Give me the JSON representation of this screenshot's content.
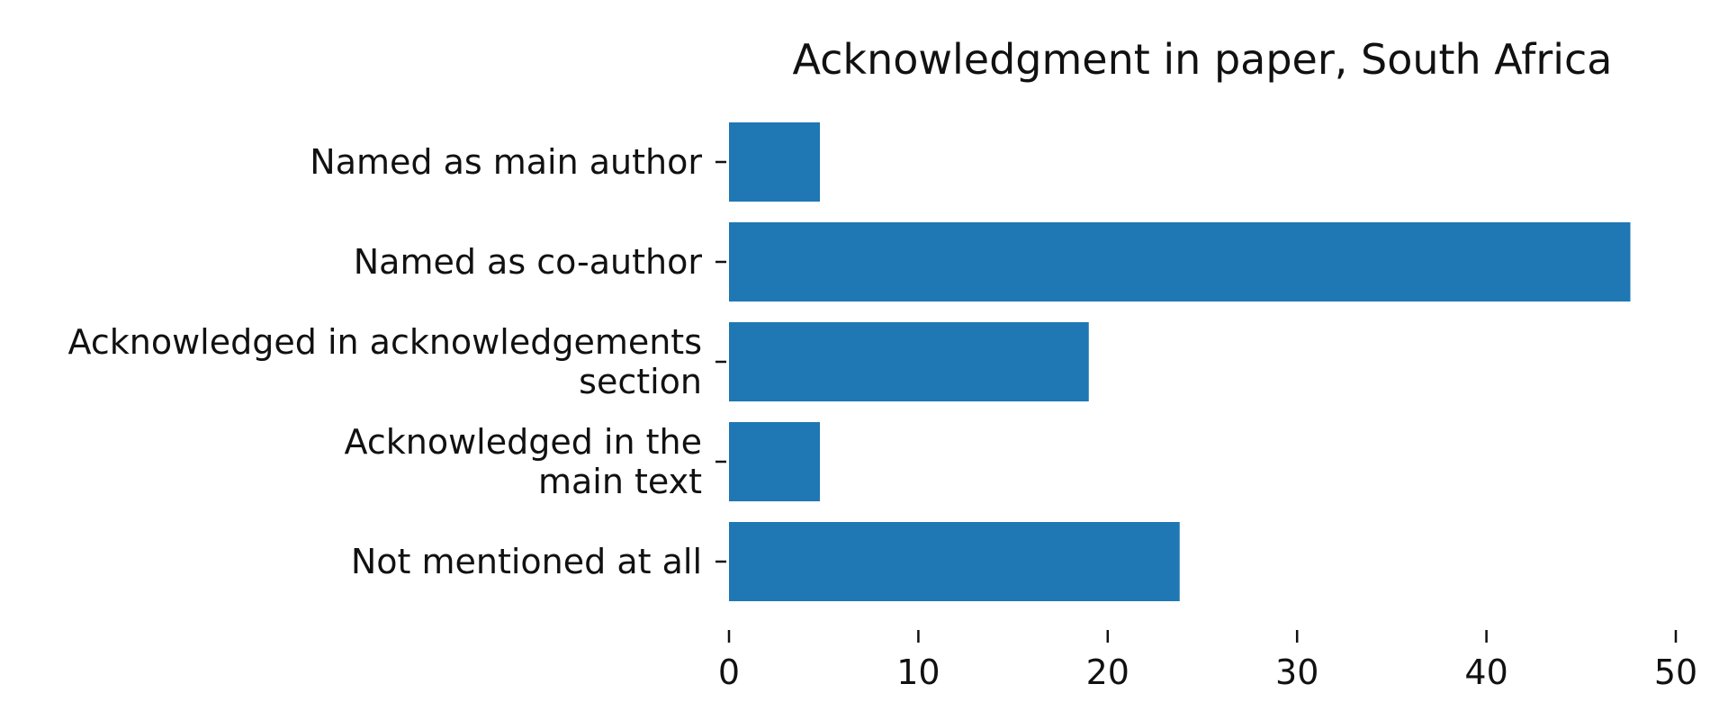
{
  "chart_data": {
    "type": "bar",
    "orientation": "horizontal",
    "title": "Acknowledgment in paper, South Africa",
    "xlabel": "",
    "ylabel": "",
    "categories": [
      "Named as main author",
      "Named as co-author",
      "Acknowledged in acknowledgements section",
      "Acknowledged in the main text",
      "Not mentioned at all"
    ],
    "category_lines": [
      [
        "Named as main author"
      ],
      [
        "Named as co-author"
      ],
      [
        "Acknowledged in acknowledgements",
        "section"
      ],
      [
        "Acknowledged in the",
        "main text"
      ],
      [
        "Not mentioned at all"
      ]
    ],
    "values": [
      4.8,
      47.6,
      19.0,
      4.8,
      23.8
    ],
    "xlim": [
      0,
      50
    ],
    "xticks": [
      0,
      10,
      20,
      30,
      40,
      50
    ],
    "grid": false,
    "legend": "none",
    "bar_color": "#1f77b4"
  }
}
